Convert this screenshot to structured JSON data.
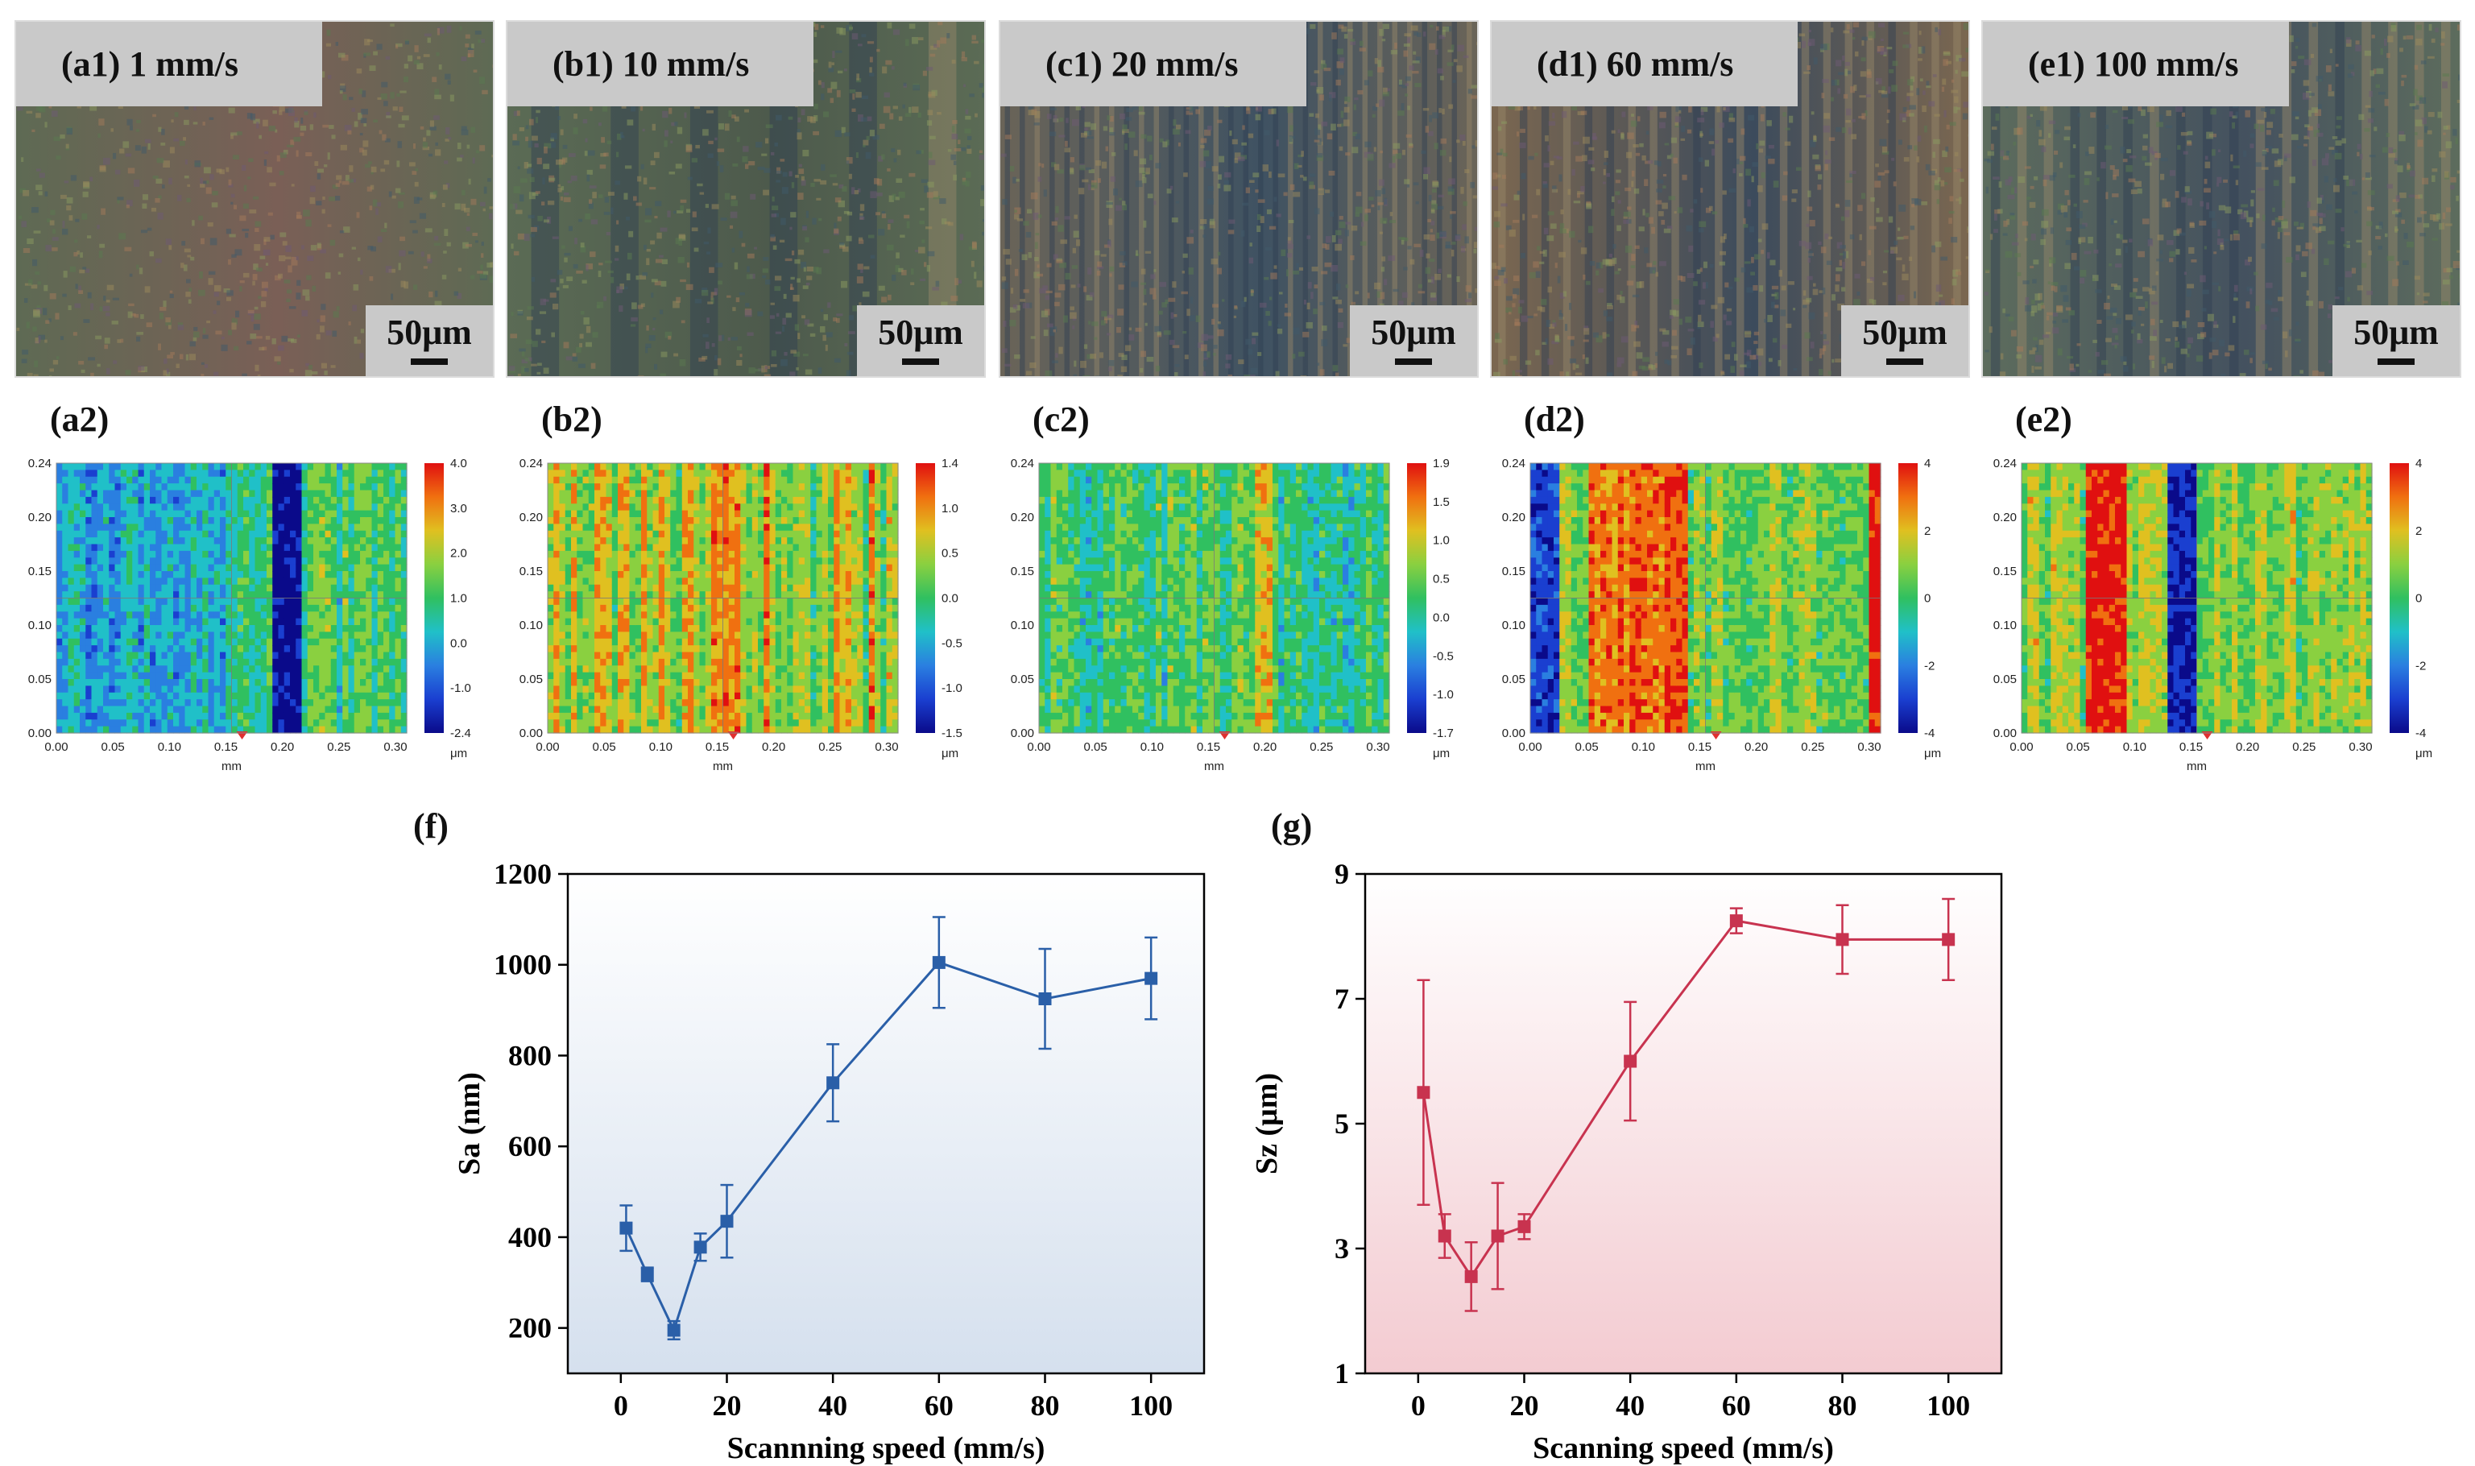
{
  "micrographs": [
    {
      "label": "(a1) 1 mm/s",
      "scale": "50μm",
      "tint": "#5e6a54",
      "tint2": "#7a5f56",
      "stripes": 0
    },
    {
      "label": "(b1) 10 mm/s",
      "scale": "50μm",
      "tint": "#5b6b55",
      "tint2": "#4d5a4c",
      "stripes": 6
    },
    {
      "label": "(c1) 20 mm/s",
      "scale": "50μm",
      "tint": "#6a6458",
      "tint2": "#3f5262",
      "stripes": 32
    },
    {
      "label": "(d1) 60 mm/s",
      "scale": "50μm",
      "tint": "#7b6750",
      "tint2": "#3c4b5c",
      "stripes": 22
    },
    {
      "label": "(e1) 100 mm/s",
      "scale": "50μm",
      "tint": "#5d6c5d",
      "tint2": "#44515f",
      "stripes": 18
    }
  ],
  "maps": [
    {
      "label": "(a2)",
      "x_ticks": [
        "0.00",
        "0.05",
        "0.10",
        "0.15",
        "0.20",
        "0.25",
        "0.30"
      ],
      "y_ticks": [
        "0.24",
        "0.20",
        "0.15",
        "0.10",
        "0.05",
        "0.00"
      ],
      "cb_ticks": [
        "4.0",
        "3.0",
        "2.0",
        "1.0",
        "0.0",
        "-1.0",
        "-2.4"
      ],
      "x_unit": "mm",
      "cb_unit": "μm"
    },
    {
      "label": "(b2)",
      "x_ticks": [
        "0.00",
        "0.05",
        "0.10",
        "0.15",
        "0.20",
        "0.25",
        "0.30"
      ],
      "y_ticks": [
        "0.24",
        "0.20",
        "0.15",
        "0.10",
        "0.05",
        "0.00"
      ],
      "cb_ticks": [
        "1.4",
        "1.0",
        "0.5",
        "0.0",
        "-0.5",
        "-1.0",
        "-1.5"
      ],
      "x_unit": "mm",
      "cb_unit": "μm"
    },
    {
      "label": "(c2)",
      "x_ticks": [
        "0.00",
        "0.05",
        "0.10",
        "0.15",
        "0.20",
        "0.25",
        "0.30"
      ],
      "y_ticks": [
        "0.24",
        "0.20",
        "0.15",
        "0.10",
        "0.05",
        "0.00"
      ],
      "cb_ticks": [
        "1.9",
        "1.5",
        "1.0",
        "0.5",
        "0.0",
        "-0.5",
        "-1.0",
        "-1.7"
      ],
      "x_unit": "mm",
      "cb_unit": "μm"
    },
    {
      "label": "(d2)",
      "x_ticks": [
        "0.00",
        "0.05",
        "0.10",
        "0.15",
        "0.20",
        "0.25",
        "0.30"
      ],
      "y_ticks": [
        "0.24",
        "0.20",
        "0.15",
        "0.10",
        "0.05",
        "0.00"
      ],
      "cb_ticks": [
        "4",
        "2",
        "0",
        "-2",
        "-4"
      ],
      "x_unit": "mm",
      "cb_unit": "μm"
    },
    {
      "label": "(e2)",
      "x_ticks": [
        "0.00",
        "0.05",
        "0.10",
        "0.15",
        "0.20",
        "0.25",
        "0.30"
      ],
      "y_ticks": [
        "0.24",
        "0.20",
        "0.15",
        "0.10",
        "0.05",
        "0.00"
      ],
      "cb_ticks": [
        "4",
        "2",
        "0",
        "-2",
        "-4"
      ],
      "x_unit": "mm",
      "cb_unit": "μm"
    }
  ],
  "chart_data": [
    {
      "panel": "(f)",
      "type": "line",
      "title": "",
      "xlabel": "Scannning speed (mm/s)",
      "ylabel": "Sa (nm)",
      "x": [
        1,
        5,
        10,
        15,
        20,
        40,
        60,
        80,
        100
      ],
      "series": [
        {
          "name": "Sa",
          "values": [
            420,
            318,
            195,
            378,
            435,
            740,
            1005,
            925,
            970
          ],
          "errors": [
            50,
            15,
            20,
            30,
            80,
            85,
            100,
            110,
            90
          ],
          "color": "#2a5fa8"
        }
      ],
      "xlim": [
        -10,
        110
      ],
      "ylim": [
        100,
        1200
      ],
      "x_ticks": [
        0,
        20,
        40,
        60,
        80,
        100
      ],
      "y_ticks": [
        200,
        400,
        600,
        800,
        1000,
        1200
      ],
      "bg_top": "#ffffff",
      "bg_bottom": "#d5e0ee"
    },
    {
      "panel": "(g)",
      "type": "line",
      "title": "",
      "xlabel": "Scanning speed (mm/s)",
      "ylabel": "Sz (μm)",
      "x": [
        1,
        5,
        10,
        15,
        20,
        40,
        60,
        80,
        100
      ],
      "series": [
        {
          "name": "Sz",
          "values": [
            5.5,
            3.2,
            2.55,
            3.2,
            3.35,
            6.0,
            8.25,
            7.95,
            7.95
          ],
          "errors": [
            1.8,
            0.35,
            0.55,
            0.85,
            0.2,
            0.95,
            0.2,
            0.55,
            0.65
          ],
          "color": "#c8334f"
        }
      ],
      "xlim": [
        -10,
        110
      ],
      "ylim": [
        1,
        9
      ],
      "x_ticks": [
        0,
        20,
        40,
        60,
        80,
        100
      ],
      "y_ticks": [
        1,
        3,
        5,
        7,
        9
      ],
      "bg_top": "#ffffff",
      "bg_bottom": "#f3cbd1"
    }
  ]
}
